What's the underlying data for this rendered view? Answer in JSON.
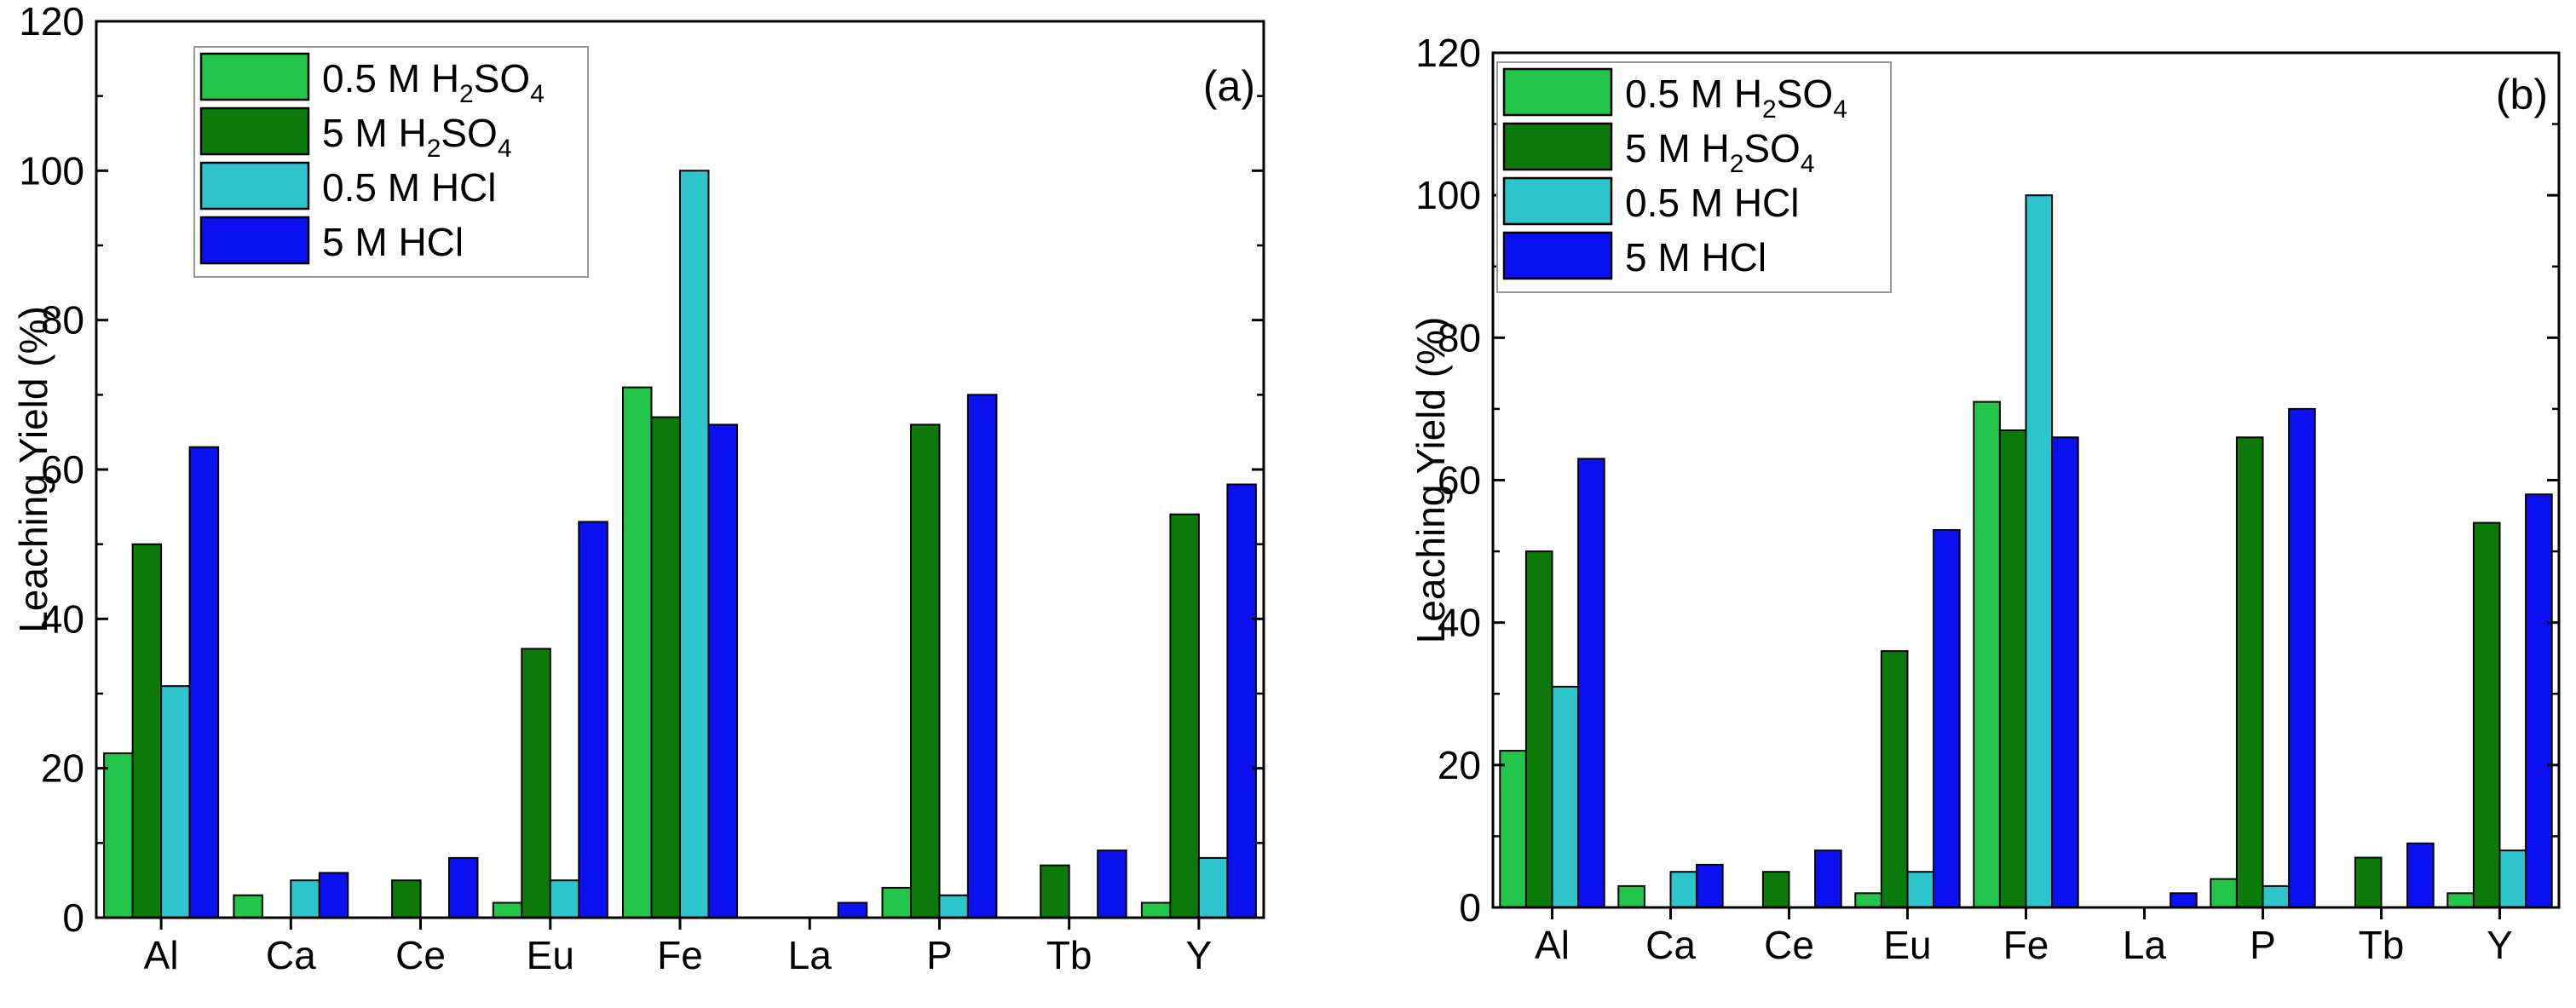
{
  "chart_data": [
    {
      "type": "bar",
      "panel_label": "(a)",
      "categories": [
        "Al",
        "Ca",
        "Ce",
        "Eu",
        "Fe",
        "La",
        "P",
        "Tb",
        "Y"
      ],
      "ylabel": "Leaching Yield (%)",
      "xlabel": "",
      "ylim": [
        0,
        120
      ],
      "yticks": [
        0,
        20,
        40,
        60,
        80,
        100,
        120
      ],
      "legend_position": "top-left",
      "series": [
        {
          "name": "0.5 M H2SO4",
          "label_base": "0.5 M H",
          "label_sub1": "2",
          "label_mid": "SO",
          "label_sub2": "4",
          "color": "#22c44a",
          "values": [
            22,
            3,
            0,
            2,
            71,
            0,
            4,
            0,
            2
          ]
        },
        {
          "name": "5 M H2SO4",
          "label_base": "5 M H",
          "label_sub1": "2",
          "label_mid": "SO",
          "label_sub2": "4",
          "color": "#0b7a0b",
          "values": [
            50,
            0,
            5,
            36,
            67,
            0,
            66,
            7,
            54
          ]
        },
        {
          "name": "0.5 M HCl",
          "label_text": "0.5 M HCl",
          "color": "#2ec4cc",
          "values": [
            31,
            5,
            0,
            5,
            100,
            0,
            3,
            0,
            8
          ]
        },
        {
          "name": "5 M HCl",
          "label_text": "5 M HCl",
          "color": "#0a10f0",
          "values": [
            63,
            6,
            8,
            53,
            66,
            2,
            70,
            9,
            58
          ]
        }
      ]
    },
    {
      "type": "bar",
      "panel_label": "(b)",
      "categories": [
        "Al",
        "Ca",
        "Ce",
        "Eu",
        "Fe",
        "La",
        "P",
        "Tb",
        "Y"
      ],
      "ylabel": "Leaching Yield (%)",
      "xlabel": "",
      "ylim": [
        0,
        120
      ],
      "yticks": [
        0,
        20,
        40,
        60,
        80,
        100,
        120
      ],
      "legend_position": "top-left",
      "series": [
        {
          "name": "0.5 M H2SO4",
          "label_base": "0.5 M H",
          "label_sub1": "2",
          "label_mid": "SO",
          "label_sub2": "4",
          "color": "#22c44a",
          "values": [
            22,
            3,
            0,
            2,
            71,
            0,
            4,
            0,
            2
          ]
        },
        {
          "name": "5 M H2SO4",
          "label_base": "5 M H",
          "label_sub1": "2",
          "label_mid": "SO",
          "label_sub2": "4",
          "color": "#0b7a0b",
          "values": [
            50,
            0,
            5,
            36,
            67,
            0,
            66,
            7,
            54
          ]
        },
        {
          "name": "0.5 M HCl",
          "label_text": "0.5 M HCl",
          "color": "#2ec4cc",
          "values": [
            31,
            5,
            0,
            5,
            100,
            0,
            3,
            0,
            8
          ]
        },
        {
          "name": "5 M HCl",
          "label_text": "5 M HCl",
          "color": "#0a10f0",
          "values": [
            63,
            6,
            8,
            53,
            66,
            2,
            70,
            9,
            58
          ]
        }
      ]
    }
  ]
}
